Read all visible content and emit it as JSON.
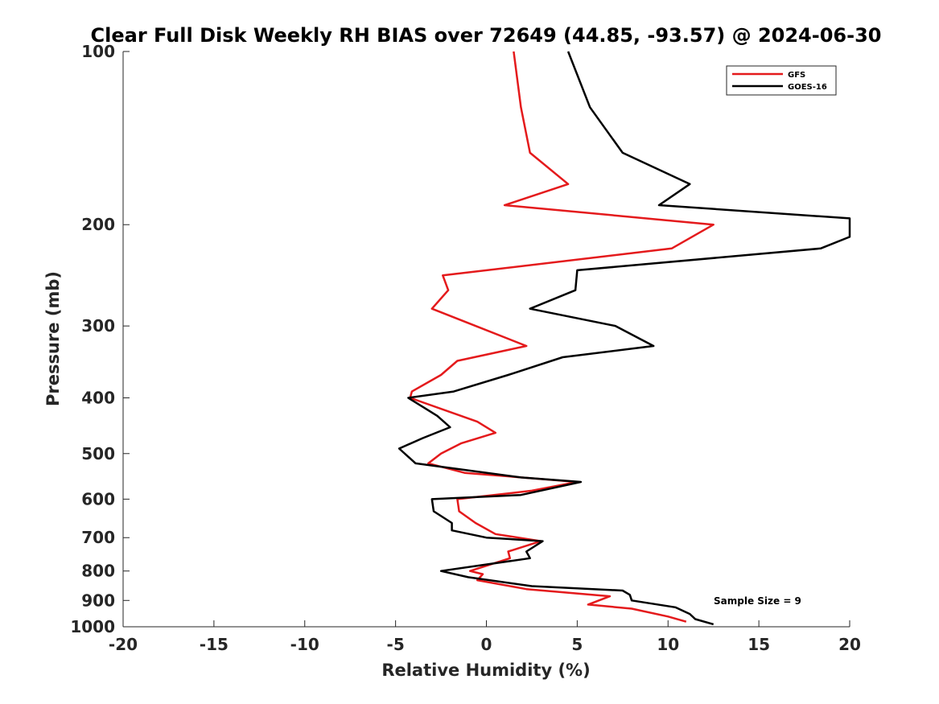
{
  "chart_data": {
    "type": "line",
    "title": "Clear Full Disk Weekly RH BIAS over 72649 (44.85, -93.57) @ 2024-06-30",
    "xlabel": "Relative Humidity (%)",
    "ylabel": "Pressure (mb)",
    "xlim": [
      -20,
      20
    ],
    "ylim": [
      100,
      1000
    ],
    "y_scale": "log",
    "y_reversed": true,
    "x_ticks": [
      -20,
      -15,
      -10,
      -5,
      0,
      5,
      10,
      15,
      20
    ],
    "y_ticks": [
      100,
      200,
      300,
      400,
      500,
      600,
      700,
      800,
      900,
      1000
    ],
    "grid": false,
    "legend_position": "top-right",
    "annotation": "Sample Size = 9",
    "series": [
      {
        "name": "GFS",
        "color": "#e41a1c",
        "points": [
          [
            1.5,
            100
          ],
          [
            1.9,
            125
          ],
          [
            2.4,
            150
          ],
          [
            4.5,
            170
          ],
          [
            1.0,
            185
          ],
          [
            12.5,
            200
          ],
          [
            10.2,
            220
          ],
          [
            -2.4,
            245
          ],
          [
            -2.1,
            260
          ],
          [
            -3.0,
            280
          ],
          [
            -0.6,
            300
          ],
          [
            2.2,
            325
          ],
          [
            -1.6,
            345
          ],
          [
            -2.5,
            365
          ],
          [
            -4.1,
            390
          ],
          [
            -4.2,
            400
          ],
          [
            -0.5,
            440
          ],
          [
            0.5,
            460
          ],
          [
            -1.4,
            480
          ],
          [
            -2.5,
            500
          ],
          [
            -3.2,
            520
          ],
          [
            -1.2,
            540
          ],
          [
            5.0,
            560
          ],
          [
            2.5,
            580
          ],
          [
            -1.6,
            600
          ],
          [
            -1.5,
            630
          ],
          [
            -0.6,
            660
          ],
          [
            0.5,
            690
          ],
          [
            3.0,
            710
          ],
          [
            1.2,
            740
          ],
          [
            1.3,
            760
          ],
          [
            -0.9,
            800
          ],
          [
            -0.2,
            810
          ],
          [
            -0.5,
            830
          ],
          [
            2.2,
            860
          ],
          [
            6.8,
            885
          ],
          [
            5.6,
            915
          ],
          [
            8.0,
            930
          ],
          [
            10.0,
            960
          ],
          [
            11.0,
            980
          ]
        ]
      },
      {
        "name": "GOES-16",
        "color": "#000000",
        "points": [
          [
            4.5,
            100
          ],
          [
            5.7,
            125
          ],
          [
            7.5,
            150
          ],
          [
            11.2,
            170
          ],
          [
            9.5,
            185
          ],
          [
            20.0,
            195
          ],
          [
            20.0,
            210
          ],
          [
            18.4,
            220
          ],
          [
            5.0,
            240
          ],
          [
            4.9,
            260
          ],
          [
            2.4,
            280
          ],
          [
            7.1,
            300
          ],
          [
            9.2,
            325
          ],
          [
            4.2,
            340
          ],
          [
            1.2,
            365
          ],
          [
            -1.8,
            390
          ],
          [
            -4.3,
            400
          ],
          [
            -2.7,
            430
          ],
          [
            -2.0,
            450
          ],
          [
            -3.5,
            470
          ],
          [
            -4.8,
            490
          ],
          [
            -3.9,
            520
          ],
          [
            1.9,
            550
          ],
          [
            5.2,
            560
          ],
          [
            1.9,
            590
          ],
          [
            -3.0,
            600
          ],
          [
            -2.9,
            630
          ],
          [
            -1.9,
            660
          ],
          [
            -1.9,
            680
          ],
          [
            0.0,
            700
          ],
          [
            3.1,
            710
          ],
          [
            2.2,
            740
          ],
          [
            2.4,
            760
          ],
          [
            -2.5,
            800
          ],
          [
            -1.0,
            820
          ],
          [
            2.5,
            850
          ],
          [
            7.5,
            865
          ],
          [
            7.9,
            880
          ],
          [
            8.0,
            900
          ],
          [
            10.4,
            925
          ],
          [
            11.2,
            950
          ],
          [
            11.5,
            970
          ],
          [
            12.5,
            990
          ]
        ]
      }
    ]
  }
}
